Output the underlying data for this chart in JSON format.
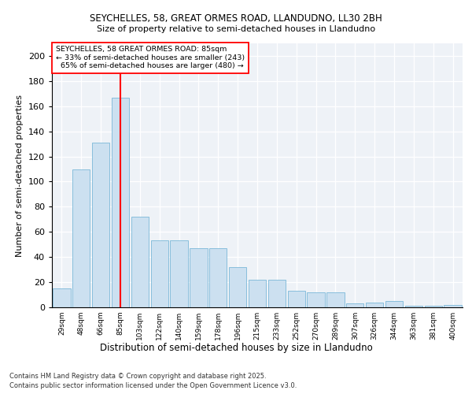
{
  "title1": "SEYCHELLES, 58, GREAT ORMES ROAD, LLANDUDNO, LL30 2BH",
  "title2": "Size of property relative to semi-detached houses in Llandudno",
  "xlabel": "Distribution of semi-detached houses by size in Llandudno",
  "ylabel": "Number of semi-detached properties",
  "categories": [
    "29sqm",
    "48sqm",
    "66sqm",
    "85sqm",
    "103sqm",
    "122sqm",
    "140sqm",
    "159sqm",
    "178sqm",
    "196sqm",
    "215sqm",
    "233sqm",
    "252sqm",
    "270sqm",
    "289sqm",
    "307sqm",
    "326sqm",
    "344sqm",
    "363sqm",
    "381sqm",
    "400sqm"
  ],
  "values": [
    15,
    110,
    131,
    167,
    72,
    53,
    53,
    47,
    47,
    32,
    22,
    22,
    13,
    12,
    12,
    3,
    4,
    5,
    1,
    1,
    2
  ],
  "bar_color": "#cce0f0",
  "bar_edge_color": "#7ab8d8",
  "red_line_index": 3,
  "property_sqm": 85,
  "pct_smaller": 33,
  "n_smaller": 243,
  "pct_larger": 65,
  "n_larger": 480,
  "annotation_label": "SEYCHELLES, 58 GREAT ORMES ROAD: 85sqm",
  "ylim": [
    0,
    210
  ],
  "yticks": [
    0,
    20,
    40,
    60,
    80,
    100,
    120,
    140,
    160,
    180,
    200
  ],
  "footer1": "Contains HM Land Registry data © Crown copyright and database right 2025.",
  "footer2": "Contains public sector information licensed under the Open Government Licence v3.0.",
  "bg_color": "#eef2f7"
}
